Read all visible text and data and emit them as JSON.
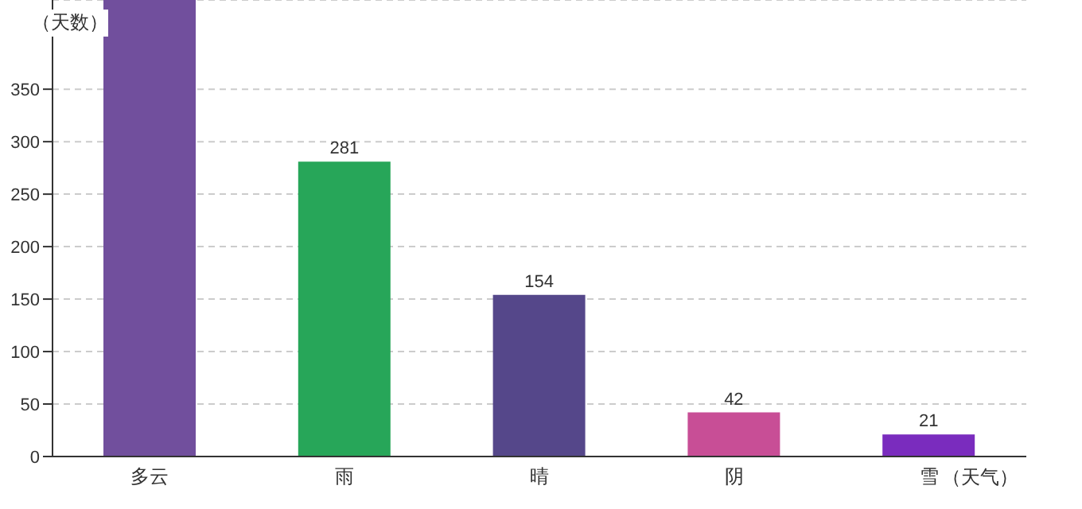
{
  "chart_data": {
    "type": "bar",
    "xlabel": "（天气）",
    "ylabel": "（天数）",
    "categories": [
      "多云",
      "雨",
      "晴",
      "阴",
      "雪"
    ],
    "values": [
      435,
      281,
      154,
      42,
      21
    ],
    "colors": [
      "#714f9d",
      "#27a659",
      "#55478a",
      "#c84e96",
      "#7a2cbe"
    ],
    "value_labels": [
      null,
      "281",
      "154",
      "42",
      "21"
    ],
    "ylim": [
      0,
      435
    ],
    "yticks": [
      0,
      50,
      100,
      150,
      200,
      250,
      300,
      350
    ],
    "grid": "y"
  }
}
